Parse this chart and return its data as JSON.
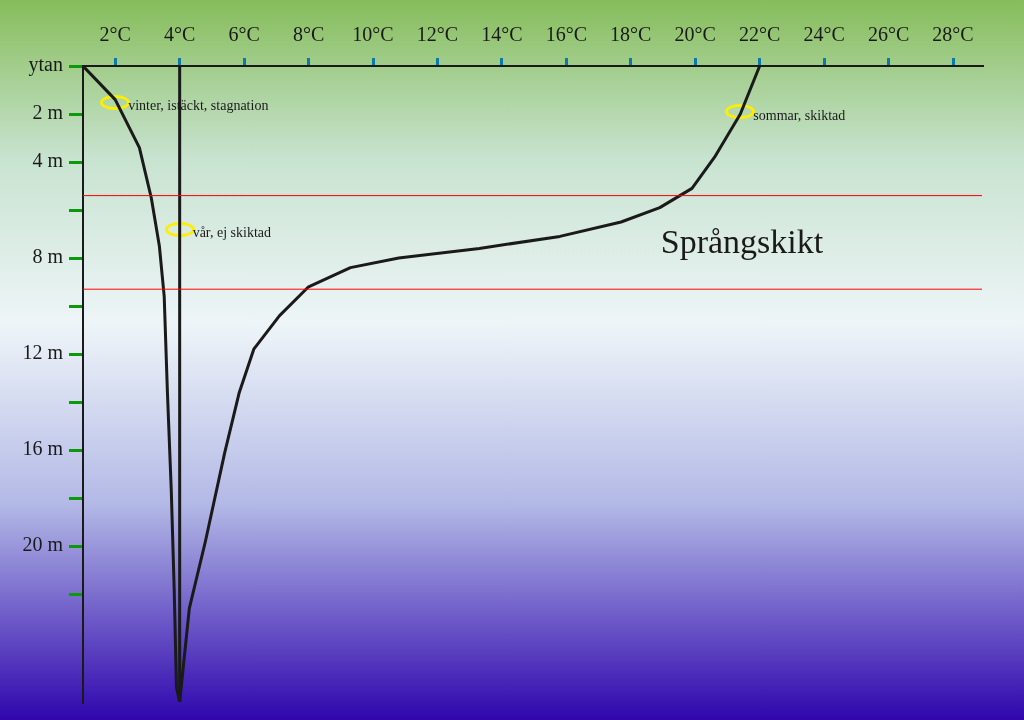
{
  "chart_data": {
    "type": "line",
    "xlim": [
      1,
      28.9
    ],
    "xticks": [
      {
        "value": 2,
        "label": "2°C"
      },
      {
        "value": 4,
        "label": "4°C"
      },
      {
        "value": 6,
        "label": "6°C"
      },
      {
        "value": 8,
        "label": "8°C"
      },
      {
        "value": 10,
        "label": "10°C"
      },
      {
        "value": 12,
        "label": "12°C"
      },
      {
        "value": 14,
        "label": "14°C"
      },
      {
        "value": 16,
        "label": "16°C"
      },
      {
        "value": 18,
        "label": "18°C"
      },
      {
        "value": 20,
        "label": "20°C"
      },
      {
        "value": 22,
        "label": "22°C"
      },
      {
        "value": 24,
        "label": "24°C"
      },
      {
        "value": 26,
        "label": "26°C"
      },
      {
        "value": 28,
        "label": "28°C"
      }
    ],
    "ylim": [
      26.5,
      0
    ],
    "yticks": [
      {
        "value": 0,
        "label": "ytan"
      },
      {
        "value": 2,
        "label": "2 m"
      },
      {
        "value": 4,
        "label": "4 m"
      },
      {
        "value": 6,
        "label": null
      },
      {
        "value": 8,
        "label": "8 m"
      },
      {
        "value": 10,
        "label": null
      },
      {
        "value": 12,
        "label": "12 m"
      },
      {
        "value": 14,
        "label": null
      },
      {
        "value": 16,
        "label": "16 m"
      },
      {
        "value": 18,
        "label": null
      },
      {
        "value": 20,
        "label": "20 m"
      },
      {
        "value": 22,
        "label": null
      }
    ],
    "series": [
      {
        "color": "#1a1a1a",
        "x": [
          1,
          2,
          2.75,
          3.12,
          3.37,
          3.52,
          3.62,
          3.74,
          3.83,
          3.9,
          4
        ],
        "values": [
          0,
          1.4,
          3.4,
          5.5,
          7.5,
          9.6,
          13.6,
          17.7,
          21.8,
          25.9,
          26.5
        ]
      },
      {
        "color": "#1a1a1a",
        "x": [
          4,
          4
        ],
        "values": [
          0,
          26.5
        ]
      },
      {
        "color": "#1a1a1a",
        "x": [
          22,
          21.4,
          20.6,
          19.9,
          18.9,
          17.7,
          15.8,
          13.3,
          10.8,
          9.3,
          8,
          7.1,
          6.3,
          5.85,
          5.4,
          4.8,
          4.3,
          4
        ],
        "values": [
          0,
          2,
          3.8,
          5.1,
          5.9,
          6.5,
          7.1,
          7.6,
          8,
          8.4,
          9.2,
          10.4,
          11.8,
          13.6,
          16.1,
          19.8,
          22.6,
          26.5
        ]
      }
    ],
    "ref_lines": [
      {
        "axis": "y",
        "value": 5.4,
        "color": "#ff0000"
      },
      {
        "axis": "y",
        "value": 9.3,
        "color": "#ff0000",
        "label": "Språngskikt"
      }
    ],
    "annotations": [
      {
        "text": "vinter, istäckt, stagnation",
        "x": 2,
        "y": 1.5
      },
      {
        "text": "vår, ej skiktad",
        "x": 4,
        "y": 6.8
      },
      {
        "text": "sommar, skiktad",
        "x": 21.4,
        "y": 1.9
      }
    ],
    "grid": false,
    "legend": false,
    "marker": "none",
    "line_style": "solid"
  }
}
